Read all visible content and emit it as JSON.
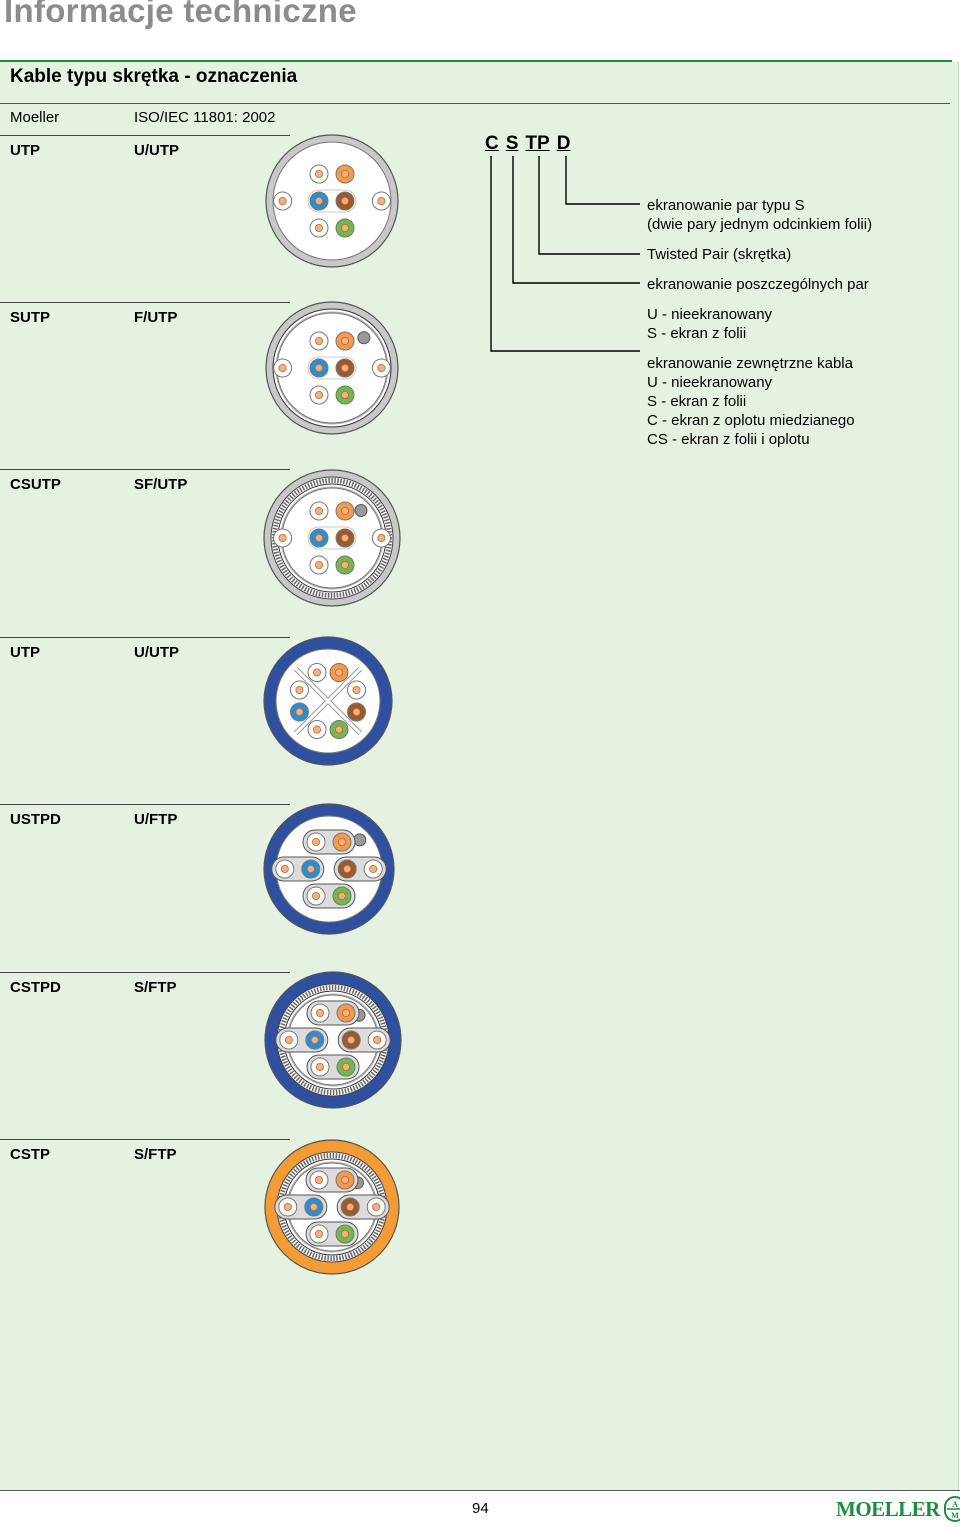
{
  "page": {
    "title": "Informacje techniczne",
    "section_title": "Kable typu skrętka - oznaczenia",
    "col_header_left": "Moeller",
    "col_header_right": "ISO/IEC 11801: 2002",
    "page_number": "94",
    "brand": "MOELLER",
    "brand_logo_letters": "AM"
  },
  "colors": {
    "accent_green": "#1e8e3e",
    "panel_bg": "#e6f2e1",
    "jacket_grey": "#c8c8c8",
    "jacket_blue": "#2f4f9f",
    "jacket_orange": "#f39b35",
    "pair_orange": "#f39b4a",
    "pair_blue": "#2b8fcf",
    "pair_brown": "#9a5a2e",
    "pair_green": "#72b84d"
  },
  "cables": [
    {
      "moeller": "UTP",
      "iso": "U/UTP",
      "jacket": "grey",
      "foil": false,
      "braid": false,
      "pair_foil": false,
      "cross": false
    },
    {
      "moeller": "SUTP",
      "iso": "F/UTP",
      "jacket": "grey",
      "foil": true,
      "braid": false,
      "pair_foil": false,
      "cross": false
    },
    {
      "moeller": "CSUTP",
      "iso": "SF/UTP",
      "jacket": "grey",
      "foil": true,
      "braid": true,
      "pair_foil": false,
      "cross": false
    },
    {
      "moeller": "UTP",
      "iso": "U/UTP",
      "jacket": "blue",
      "foil": false,
      "braid": false,
      "pair_foil": false,
      "cross": true
    },
    {
      "moeller": "USTPD",
      "iso": "U/FTP",
      "jacket": "blue",
      "foil": false,
      "braid": false,
      "pair_foil": true,
      "cross": false
    },
    {
      "moeller": "CSTPD",
      "iso": "S/FTP",
      "jacket": "blue",
      "foil": true,
      "braid": true,
      "pair_foil": true,
      "cross": false
    },
    {
      "moeller": "CSTP",
      "iso": "S/FTP",
      "jacket": "orange",
      "foil": true,
      "braid": true,
      "pair_foil": true,
      "cross": false
    }
  ],
  "code": {
    "c": "C",
    "s": "S",
    "tp": "TP",
    "d": "D"
  },
  "legend": {
    "d_line1": "ekranowanie par typu S",
    "d_line2": "(dwie pary jednym odcinkiem folii)",
    "tp": "Twisted Pair (skrętka)",
    "s_title": "ekranowanie poszczególnych par",
    "s_u": "U - nieekranowany",
    "s_s": "S - ekran z folii",
    "c_title": "ekranowanie zewnętrzne kabla",
    "c_u": "U - nieekranowany",
    "c_s": "S - ekran z folii",
    "c_c": "C - ekran z oplotu miedzianego",
    "c_cs": "CS - ekran z folii i oplotu"
  }
}
